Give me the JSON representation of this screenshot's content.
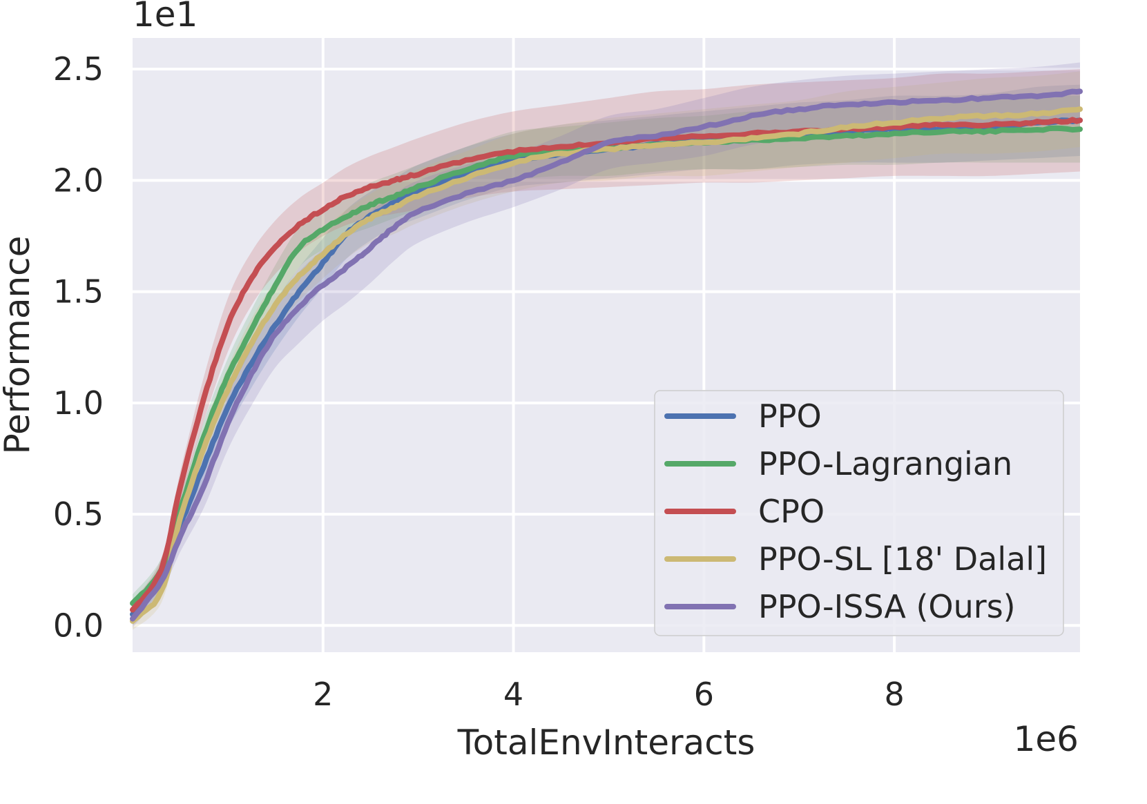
{
  "chart_data": {
    "type": "line",
    "xlabel": "TotalEnvInteracts",
    "ylabel": "Performance",
    "x_scale_text": "1e6",
    "y_scale_text": "1e1",
    "xlim": [
      0,
      9.95
    ],
    "ylim": [
      -0.12,
      2.64
    ],
    "xticks": [
      2,
      4,
      6,
      8
    ],
    "xtick_labels": [
      "2",
      "4",
      "6",
      "8"
    ],
    "yticks": [
      0.0,
      0.5,
      1.0,
      1.5,
      2.0,
      2.5
    ],
    "ytick_labels": [
      "0.0",
      "0.5",
      "1.0",
      "1.5",
      "2.0",
      "2.5"
    ],
    "grid": true,
    "legend_position": "lower-right",
    "x": [
      0,
      0.3,
      0.5,
      0.75,
      1.0,
      1.25,
      1.5,
      1.75,
      2.0,
      2.25,
      2.5,
      2.75,
      3.0,
      3.5,
      4.0,
      4.5,
      5.0,
      5.5,
      6.0,
      6.5,
      7.0,
      7.5,
      8.0,
      8.5,
      9.0,
      9.5,
      9.95
    ],
    "series": [
      {
        "name": "PPO",
        "color": "#4c72b0",
        "values": [
          0.05,
          0.22,
          0.45,
          0.72,
          0.98,
          1.18,
          1.35,
          1.5,
          1.63,
          1.76,
          1.84,
          1.9,
          1.95,
          2.03,
          2.09,
          2.12,
          2.14,
          2.16,
          2.18,
          2.19,
          2.21,
          2.22,
          2.23,
          2.23,
          2.24,
          2.26,
          2.27
        ],
        "band": [
          0.05,
          0.05,
          0.06,
          0.08,
          0.1,
          0.11,
          0.11,
          0.11,
          0.11,
          0.11,
          0.11,
          0.11,
          0.12,
          0.12,
          0.12,
          0.13,
          0.13,
          0.13,
          0.13,
          0.14,
          0.14,
          0.14,
          0.15,
          0.15,
          0.15,
          0.16,
          0.16
        ]
      },
      {
        "name": "PPO-Lagrangian",
        "color": "#55a868",
        "values": [
          0.1,
          0.25,
          0.52,
          0.85,
          1.12,
          1.33,
          1.53,
          1.7,
          1.78,
          1.84,
          1.89,
          1.93,
          1.97,
          2.05,
          2.11,
          2.13,
          2.14,
          2.16,
          2.17,
          2.18,
          2.19,
          2.2,
          2.21,
          2.22,
          2.22,
          2.23,
          2.23
        ],
        "band": [
          0.04,
          0.05,
          0.06,
          0.07,
          0.08,
          0.09,
          0.09,
          0.09,
          0.09,
          0.09,
          0.1,
          0.1,
          0.1,
          0.1,
          0.11,
          0.11,
          0.12,
          0.12,
          0.12,
          0.13,
          0.13,
          0.13,
          0.14,
          0.14,
          0.14,
          0.15,
          0.15
        ]
      },
      {
        "name": "CPO",
        "color": "#c44e52",
        "values": [
          0.07,
          0.25,
          0.62,
          1.02,
          1.35,
          1.56,
          1.7,
          1.8,
          1.87,
          1.93,
          1.97,
          2.0,
          2.03,
          2.09,
          2.13,
          2.15,
          2.17,
          2.19,
          2.2,
          2.21,
          2.22,
          2.23,
          2.24,
          2.25,
          2.25,
          2.26,
          2.27
        ],
        "band": [
          0.04,
          0.05,
          0.07,
          0.1,
          0.12,
          0.12,
          0.12,
          0.12,
          0.12,
          0.13,
          0.14,
          0.15,
          0.16,
          0.17,
          0.18,
          0.19,
          0.2,
          0.21,
          0.21,
          0.22,
          0.22,
          0.22,
          0.22,
          0.23,
          0.23,
          0.23,
          0.23
        ]
      },
      {
        "name": "PPO-SL [18' Dalal]",
        "color": "#ccb974",
        "values": [
          0.02,
          0.15,
          0.48,
          0.8,
          1.06,
          1.27,
          1.44,
          1.57,
          1.67,
          1.76,
          1.83,
          1.88,
          1.93,
          2.01,
          2.08,
          2.12,
          2.14,
          2.16,
          2.17,
          2.19,
          2.21,
          2.24,
          2.26,
          2.28,
          2.29,
          2.3,
          2.32
        ],
        "band": [
          0.04,
          0.05,
          0.07,
          0.09,
          0.1,
          0.11,
          0.11,
          0.11,
          0.11,
          0.11,
          0.11,
          0.12,
          0.12,
          0.12,
          0.13,
          0.13,
          0.14,
          0.14,
          0.15,
          0.15,
          0.15,
          0.16,
          0.16,
          0.16,
          0.17,
          0.17,
          0.17
        ]
      },
      {
        "name": "PPO-ISSA (Ours)",
        "color": "#8172b2",
        "values": [
          0.03,
          0.2,
          0.4,
          0.63,
          0.91,
          1.13,
          1.31,
          1.43,
          1.53,
          1.61,
          1.7,
          1.79,
          1.86,
          1.94,
          2.0,
          2.08,
          2.17,
          2.2,
          2.24,
          2.29,
          2.32,
          2.34,
          2.35,
          2.36,
          2.37,
          2.38,
          2.4
        ],
        "band": [
          0.04,
          0.05,
          0.07,
          0.1,
          0.12,
          0.14,
          0.15,
          0.16,
          0.16,
          0.16,
          0.16,
          0.15,
          0.14,
          0.13,
          0.12,
          0.12,
          0.12,
          0.12,
          0.13,
          0.13,
          0.13,
          0.13,
          0.13,
          0.13,
          0.13,
          0.13,
          0.13
        ]
      }
    ]
  }
}
